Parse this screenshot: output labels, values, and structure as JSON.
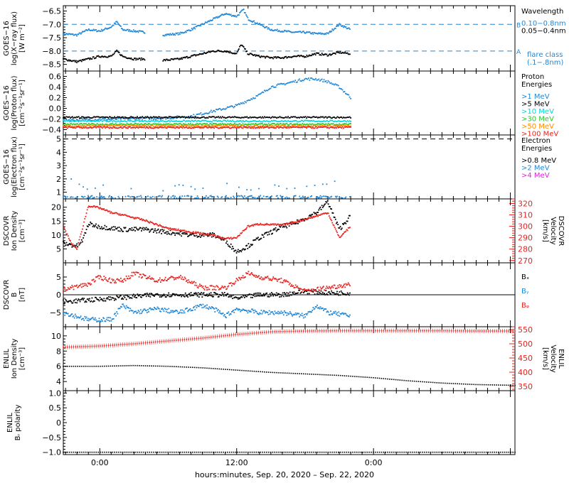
{
  "figure": {
    "xlabel": "hours:minutes, Sep. 20, 2020 – Sep. 22, 2020",
    "time_range_h": [
      -3.2,
      36.4
    ],
    "time_ticks": [
      {
        "h": 0,
        "label": "0:00"
      },
      {
        "h": 12,
        "label": "12:00"
      },
      {
        "h": 24,
        "label": "0:00"
      }
    ],
    "data_end_h": 22.0
  },
  "colors": {
    "black": "#000000",
    "blue": "#1f87d6",
    "cyan": "#00d8e0",
    "green": "#2ec42e",
    "orange": "#ff8c00",
    "red": "#e8231f",
    "magenta": "#e020e0",
    "refline": "#1f87d6"
  },
  "chart_data": [
    {
      "id": "goes-xray",
      "type": "scatter",
      "ylabel": [
        "GOES−16",
        "log(X−ray flux)",
        "[W m⁻²]"
      ],
      "ylim": [
        -8.75,
        -6.3
      ],
      "yticks": [
        -8.5,
        -8.0,
        -7.5,
        -7.0,
        -6.5
      ],
      "reference_lines": [
        {
          "y": -7.0,
          "label": "B"
        },
        {
          "y": -8.0,
          "label": "A"
        }
      ],
      "legend_title": [
        "Wavelength"
      ],
      "legend": [
        {
          "text": "0.10−0.8nm",
          "color": "blue"
        },
        {
          "text": "0.05−0.4nm",
          "color": "black"
        }
      ],
      "legend_footer": [
        "flare class",
        "(.1−.8nm)"
      ],
      "gaps": [
        [
          4.0,
          5.5
        ],
        [
          22.0,
          36.4
        ]
      ],
      "series": [
        {
          "name": "0.10−0.8nm",
          "color": "blue",
          "x": [
            -3.2,
            -2,
            -1,
            0,
            1,
            1.5,
            2,
            3,
            4,
            5.5,
            7,
            8,
            9,
            10,
            11,
            12,
            12.6,
            13,
            14,
            15,
            16,
            17,
            18,
            19,
            20,
            21,
            22
          ],
          "y": [
            -7.35,
            -7.4,
            -7.2,
            -7.25,
            -7.1,
            -6.9,
            -7.2,
            -7.25,
            -7.3,
            -7.4,
            -7.35,
            -7.2,
            -7.0,
            -6.8,
            -6.6,
            -6.7,
            -6.45,
            -6.8,
            -7.0,
            -7.2,
            -7.25,
            -7.3,
            -7.3,
            -7.35,
            -7.35,
            -7.0,
            -7.2
          ]
        },
        {
          "name": "0.05−0.4nm",
          "color": "black",
          "x": [
            -3.2,
            -2,
            -1,
            0,
            1,
            1.5,
            2,
            3,
            4,
            5.5,
            7,
            8,
            9,
            10,
            11,
            12,
            12.4,
            13,
            14,
            15,
            16,
            17,
            18,
            19,
            20,
            21,
            22
          ],
          "y": [
            -8.3,
            -8.4,
            -8.3,
            -8.2,
            -8.2,
            -8.0,
            -8.2,
            -8.3,
            -8.3,
            -8.35,
            -8.3,
            -8.2,
            -8.1,
            -8.0,
            -8.0,
            -8.1,
            -7.75,
            -8.1,
            -8.2,
            -8.25,
            -8.25,
            -8.2,
            -8.2,
            -8.1,
            -8.15,
            -8.05,
            -8.1
          ]
        }
      ]
    },
    {
      "id": "goes-proton",
      "type": "scatter",
      "ylabel": [
        "GOES−16",
        "log(Proton flux)",
        "[cm⁻²s⁻¹sr⁻¹]"
      ],
      "ylim": [
        -0.5,
        0.7
      ],
      "yticks": [
        -0.4,
        -0.2,
        0.0,
        0.2,
        0.4,
        0.6
      ],
      "legend_title": [
        "Proton",
        "Energies"
      ],
      "legend": [
        {
          "text": ">1 MeV",
          "color": "blue"
        },
        {
          "text": ">5 MeV",
          "color": "black"
        },
        {
          "text": ">10 MeV",
          "color": "cyan"
        },
        {
          "text": ">30 MeV",
          "color": "green"
        },
        {
          "text": ">50 MeV",
          "color": "orange"
        },
        {
          "text": ">100 MeV",
          "color": "red"
        }
      ],
      "gaps": [
        [
          22.0,
          36.4
        ]
      ],
      "series": [
        {
          "name": ">1 MeV",
          "color": "blue",
          "x": [
            -3.2,
            2,
            6,
            8,
            10,
            12,
            13,
            14,
            15,
            16,
            17,
            18,
            19,
            20,
            21,
            22
          ],
          "y": [
            -0.22,
            -0.2,
            -0.18,
            -0.15,
            -0.05,
            0.05,
            0.15,
            0.25,
            0.4,
            0.45,
            0.5,
            0.55,
            0.55,
            0.5,
            0.4,
            0.2
          ]
        },
        {
          "name": ">5 MeV",
          "color": "black",
          "x": [
            -3.2,
            22
          ],
          "y": [
            -0.17,
            -0.17
          ]
        },
        {
          "name": ">10 MeV",
          "color": "cyan",
          "x": [
            -3.2,
            22
          ],
          "y": [
            -0.24,
            -0.24
          ]
        },
        {
          "name": ">30 MeV",
          "color": "green",
          "x": [
            -3.2,
            22
          ],
          "y": [
            -0.3,
            -0.3
          ]
        },
        {
          "name": ">50 MeV",
          "color": "orange",
          "x": [
            -3.2,
            22
          ],
          "y": [
            -0.33,
            -0.33
          ]
        },
        {
          "name": ">100 MeV",
          "color": "red",
          "x": [
            -3.2,
            22
          ],
          "y": [
            -0.36,
            -0.36
          ]
        }
      ]
    },
    {
      "id": "goes-electron",
      "type": "scatter",
      "ylabel": [
        "GOES−16",
        "log(Electron flux)",
        "[cm⁻²s⁻¹sr⁻¹]"
      ],
      "ylim": [
        0.5,
        5.3
      ],
      "yticks": [
        1,
        2,
        3,
        4,
        5
      ],
      "reference_lines": [
        {
          "y": 5.0,
          "style": "dashed-black"
        }
      ],
      "legend_title": [
        "Electron",
        "Energies"
      ],
      "legend": [
        {
          "text": ">0.8 MeV",
          "color": "black"
        },
        {
          "text": ">2 MeV",
          "color": "blue"
        },
        {
          "text": ">4 MeV",
          "color": "magenta"
        }
      ],
      "gaps": [
        [
          22.0,
          36.4
        ]
      ],
      "series": [
        {
          "name": ">2 MeV",
          "color": "blue",
          "x": [
            -2.5,
            -1,
            1,
            3,
            5,
            7,
            9,
            11,
            13,
            15,
            17,
            19,
            21.5
          ],
          "y": [
            1.9,
            1.2,
            1.6,
            1.3,
            1.0,
            1.5,
            1.2,
            1.6,
            1.1,
            1.5,
            1.3,
            1.6,
            1.8
          ]
        },
        {
          "name": ">2 MeV baseline",
          "color": "blue",
          "x": [
            -3.2,
            22
          ],
          "y": [
            0.65,
            0.65
          ]
        }
      ]
    },
    {
      "id": "dscovr-plasma",
      "type": "scatter",
      "ylabel": [
        "DSCOVR",
        "Ion Density",
        "[cm⁻³]"
      ],
      "ylim": [
        0,
        23
      ],
      "yticks": [
        5,
        10,
        15,
        20
      ],
      "ylabel_right": [
        "DSCOVR",
        "Velocity",
        "[km/s]"
      ],
      "ylim_right": [
        268,
        324
      ],
      "yticks_right": [
        270,
        280,
        290,
        300,
        310,
        320
      ],
      "gaps": [
        [
          22.0,
          36.4
        ]
      ],
      "series": [
        {
          "name": "density",
          "color": "black",
          "axis": "left",
          "x": [
            -3.2,
            -2,
            -1.5,
            -1,
            0,
            2,
            4,
            6,
            8,
            10,
            11,
            12,
            13,
            14,
            15,
            16,
            17,
            18,
            19,
            20,
            20.5,
            21,
            22
          ],
          "y": [
            7,
            6,
            8,
            14,
            13,
            12,
            12,
            11,
            10,
            10,
            8,
            4,
            6,
            9,
            11,
            13,
            14,
            16,
            18,
            22,
            17,
            12,
            17
          ]
        },
        {
          "name": "velocity",
          "color": "red",
          "axis": "right",
          "x": [
            -3.2,
            -2.5,
            -2,
            -1,
            0,
            1,
            2,
            4,
            6,
            8,
            10,
            11,
            12,
            13,
            14,
            16,
            18,
            20,
            21,
            22
          ],
          "y": [
            300,
            285,
            280,
            318,
            316,
            312,
            310,
            305,
            298,
            295,
            292,
            289,
            290,
            300,
            302,
            301,
            306,
            312,
            290,
            300
          ]
        }
      ]
    },
    {
      "id": "dscovr-mag",
      "type": "scatter",
      "ylabel": [
        "DSCOVR",
        "B",
        "[nT]"
      ],
      "ylim": [
        -9,
        9
      ],
      "yticks": [
        -5,
        0,
        5
      ],
      "zero_line": true,
      "legend": [
        {
          "text": "Bₓ",
          "color": "black"
        },
        {
          "text": "Bᵧ",
          "color": "blue"
        },
        {
          "text": "Bᵩ",
          "color": "red"
        }
      ],
      "gaps": [
        [
          22.0,
          36.4
        ]
      ],
      "series": [
        {
          "name": "Bx",
          "color": "black",
          "x": [
            -3.2,
            -1,
            1,
            3,
            5,
            7,
            9,
            11,
            12,
            14,
            16,
            18,
            20,
            22
          ],
          "y": [
            -2,
            -1.5,
            -1,
            -0.5,
            0,
            0,
            0,
            0,
            -1,
            0,
            0,
            1,
            0.5,
            0.5
          ]
        },
        {
          "name": "By",
          "color": "blue",
          "x": [
            -3.2,
            -1,
            1,
            2,
            3,
            5,
            7,
            9,
            10,
            11,
            12,
            14,
            16,
            18,
            19,
            20,
            22
          ],
          "y": [
            -5,
            -7,
            -7,
            -3,
            -5,
            -4,
            -5,
            -3,
            -4,
            -6,
            -4,
            -5,
            -5,
            -6,
            -3,
            -5,
            -6
          ]
        },
        {
          "name": "Bz",
          "color": "red",
          "x": [
            -3.2,
            -1,
            0,
            1,
            2,
            3,
            5,
            7,
            9,
            11,
            12,
            13,
            14,
            16,
            18,
            20,
            22
          ],
          "y": [
            1.5,
            3,
            5,
            4,
            4,
            6,
            4,
            5,
            2,
            2,
            4,
            6,
            5,
            4,
            1,
            2,
            3
          ]
        }
      ]
    },
    {
      "id": "enlil-plasma",
      "type": "line",
      "ylabel": [
        "ENLIL",
        "Ion Density",
        "[cm⁻³]"
      ],
      "ylim": [
        2.8,
        11.2
      ],
      "yticks": [
        4,
        6,
        8,
        10
      ],
      "ylabel_right": [
        "ENLIL",
        "Velocity",
        "[km/s]"
      ],
      "ylim_right": [
        335,
        560
      ],
      "yticks_right": [
        350,
        400,
        450,
        500,
        550
      ],
      "series": [
        {
          "name": "density",
          "color": "black",
          "axis": "left",
          "x": [
            -3.2,
            0,
            3,
            6,
            9,
            12,
            15,
            18,
            21,
            24,
            27,
            30,
            33,
            36.4
          ],
          "y": [
            6.0,
            6.0,
            6.1,
            6.0,
            5.8,
            5.5,
            5.2,
            5.0,
            4.8,
            4.5,
            4.1,
            3.8,
            3.6,
            3.5
          ]
        },
        {
          "name": "velocity",
          "color": "red",
          "axis": "right",
          "x": [
            -3.2,
            0,
            3,
            6,
            9,
            12,
            15,
            18,
            21,
            24,
            27,
            30,
            33,
            36.4
          ],
          "y": [
            488,
            492,
            500,
            510,
            520,
            533,
            542,
            545,
            546,
            546,
            546,
            546,
            545,
            545
          ]
        }
      ]
    },
    {
      "id": "enlil-polarity",
      "type": "line",
      "ylabel": [
        "ENLIL",
        "Bᵣ polarity"
      ],
      "ylim": [
        -1.08,
        1.08
      ],
      "yticks": [
        -1.0,
        -0.5,
        0.0,
        0.5,
        1.0
      ],
      "series": [
        {
          "name": "polarity",
          "color": "black",
          "axis": "left",
          "x": [
            -3.2,
            36.4
          ],
          "y": [
            -1.0,
            -1.0
          ]
        }
      ]
    }
  ]
}
